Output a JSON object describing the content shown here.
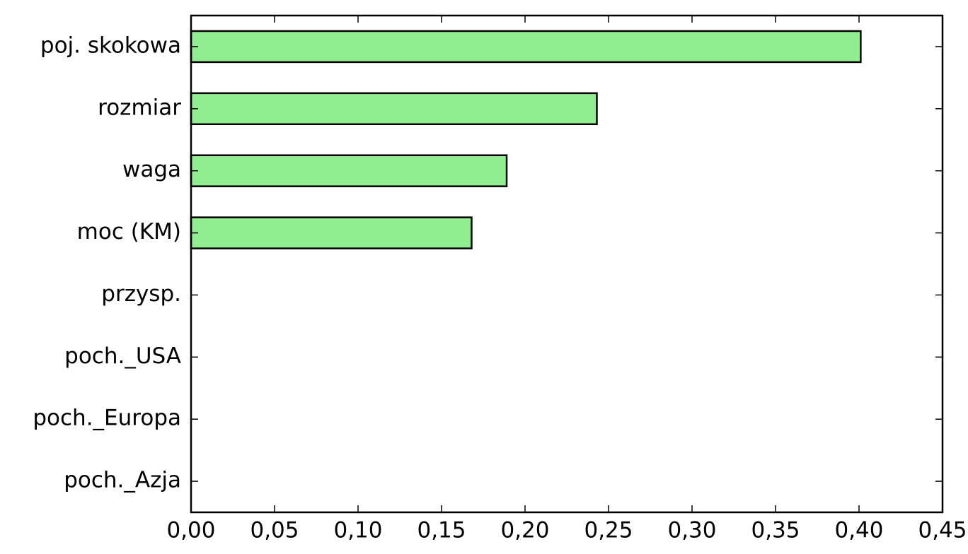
{
  "chart_data": {
    "type": "barh",
    "categories": [
      "poj. skokowa",
      "rozmiar",
      "waga",
      "moc (KM)",
      "przysp.",
      "poch._USA",
      "poch._Europa",
      "poch._Azja"
    ],
    "values": [
      0.401,
      0.243,
      0.189,
      0.168,
      0,
      0,
      0,
      0
    ],
    "color": "#90ee90",
    "xlim": [
      0,
      0.45
    ],
    "xticks": [
      {
        "value": 0,
        "label": "0,00"
      },
      {
        "value": 0.05,
        "label": "0,05"
      },
      {
        "value": 0.1,
        "label": "0,10"
      },
      {
        "value": 0.15,
        "label": "0,15"
      },
      {
        "value": 0.2,
        "label": "0,20"
      },
      {
        "value": 0.25,
        "label": "0,25"
      },
      {
        "value": 0.3,
        "label": "0,30"
      },
      {
        "value": 0.35,
        "label": "0,35"
      },
      {
        "value": 0.4,
        "label": "0,40"
      },
      {
        "value": 0.45,
        "label": "0,45"
      }
    ],
    "grid": false
  }
}
